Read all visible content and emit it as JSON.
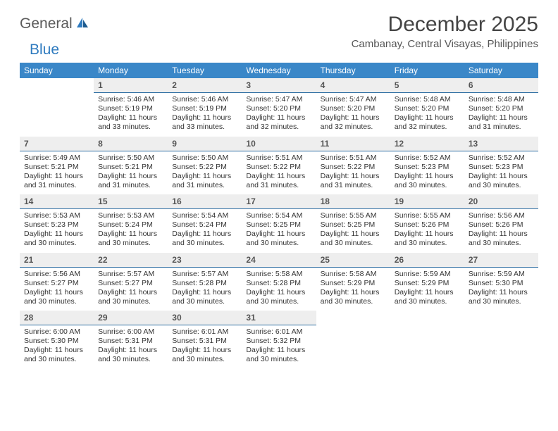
{
  "logo": {
    "brand_a": "General",
    "brand_b": "Blue"
  },
  "title": "December 2025",
  "location": "Cambanay, Central Visayas, Philippines",
  "colors": {
    "header_bg": "#3a87c8",
    "header_text": "#ffffff",
    "daynum_bg": "#eeeeee",
    "daynum_border": "#2f6fa3",
    "body_text": "#333333",
    "logo_gray": "#5c5c5c",
    "logo_blue": "#2f7bbf"
  },
  "fonts": {
    "title_size_pt": 22,
    "location_size_pt": 11,
    "th_size_pt": 9,
    "daynum_size_pt": 9,
    "body_size_pt": 8
  },
  "weekdays": [
    "Sunday",
    "Monday",
    "Tuesday",
    "Wednesday",
    "Thursday",
    "Friday",
    "Saturday"
  ],
  "weeks": [
    [
      null,
      {
        "n": "1",
        "sr": "Sunrise: 5:46 AM",
        "ss": "Sunset: 5:19 PM",
        "dl": "Daylight: 11 hours and 33 minutes."
      },
      {
        "n": "2",
        "sr": "Sunrise: 5:46 AM",
        "ss": "Sunset: 5:19 PM",
        "dl": "Daylight: 11 hours and 33 minutes."
      },
      {
        "n": "3",
        "sr": "Sunrise: 5:47 AM",
        "ss": "Sunset: 5:20 PM",
        "dl": "Daylight: 11 hours and 32 minutes."
      },
      {
        "n": "4",
        "sr": "Sunrise: 5:47 AM",
        "ss": "Sunset: 5:20 PM",
        "dl": "Daylight: 11 hours and 32 minutes."
      },
      {
        "n": "5",
        "sr": "Sunrise: 5:48 AM",
        "ss": "Sunset: 5:20 PM",
        "dl": "Daylight: 11 hours and 32 minutes."
      },
      {
        "n": "6",
        "sr": "Sunrise: 5:48 AM",
        "ss": "Sunset: 5:20 PM",
        "dl": "Daylight: 11 hours and 31 minutes."
      }
    ],
    [
      {
        "n": "7",
        "sr": "Sunrise: 5:49 AM",
        "ss": "Sunset: 5:21 PM",
        "dl": "Daylight: 11 hours and 31 minutes."
      },
      {
        "n": "8",
        "sr": "Sunrise: 5:50 AM",
        "ss": "Sunset: 5:21 PM",
        "dl": "Daylight: 11 hours and 31 minutes."
      },
      {
        "n": "9",
        "sr": "Sunrise: 5:50 AM",
        "ss": "Sunset: 5:22 PM",
        "dl": "Daylight: 11 hours and 31 minutes."
      },
      {
        "n": "10",
        "sr": "Sunrise: 5:51 AM",
        "ss": "Sunset: 5:22 PM",
        "dl": "Daylight: 11 hours and 31 minutes."
      },
      {
        "n": "11",
        "sr": "Sunrise: 5:51 AM",
        "ss": "Sunset: 5:22 PM",
        "dl": "Daylight: 11 hours and 31 minutes."
      },
      {
        "n": "12",
        "sr": "Sunrise: 5:52 AM",
        "ss": "Sunset: 5:23 PM",
        "dl": "Daylight: 11 hours and 30 minutes."
      },
      {
        "n": "13",
        "sr": "Sunrise: 5:52 AM",
        "ss": "Sunset: 5:23 PM",
        "dl": "Daylight: 11 hours and 30 minutes."
      }
    ],
    [
      {
        "n": "14",
        "sr": "Sunrise: 5:53 AM",
        "ss": "Sunset: 5:23 PM",
        "dl": "Daylight: 11 hours and 30 minutes."
      },
      {
        "n": "15",
        "sr": "Sunrise: 5:53 AM",
        "ss": "Sunset: 5:24 PM",
        "dl": "Daylight: 11 hours and 30 minutes."
      },
      {
        "n": "16",
        "sr": "Sunrise: 5:54 AM",
        "ss": "Sunset: 5:24 PM",
        "dl": "Daylight: 11 hours and 30 minutes."
      },
      {
        "n": "17",
        "sr": "Sunrise: 5:54 AM",
        "ss": "Sunset: 5:25 PM",
        "dl": "Daylight: 11 hours and 30 minutes."
      },
      {
        "n": "18",
        "sr": "Sunrise: 5:55 AM",
        "ss": "Sunset: 5:25 PM",
        "dl": "Daylight: 11 hours and 30 minutes."
      },
      {
        "n": "19",
        "sr": "Sunrise: 5:55 AM",
        "ss": "Sunset: 5:26 PM",
        "dl": "Daylight: 11 hours and 30 minutes."
      },
      {
        "n": "20",
        "sr": "Sunrise: 5:56 AM",
        "ss": "Sunset: 5:26 PM",
        "dl": "Daylight: 11 hours and 30 minutes."
      }
    ],
    [
      {
        "n": "21",
        "sr": "Sunrise: 5:56 AM",
        "ss": "Sunset: 5:27 PM",
        "dl": "Daylight: 11 hours and 30 minutes."
      },
      {
        "n": "22",
        "sr": "Sunrise: 5:57 AM",
        "ss": "Sunset: 5:27 PM",
        "dl": "Daylight: 11 hours and 30 minutes."
      },
      {
        "n": "23",
        "sr": "Sunrise: 5:57 AM",
        "ss": "Sunset: 5:28 PM",
        "dl": "Daylight: 11 hours and 30 minutes."
      },
      {
        "n": "24",
        "sr": "Sunrise: 5:58 AM",
        "ss": "Sunset: 5:28 PM",
        "dl": "Daylight: 11 hours and 30 minutes."
      },
      {
        "n": "25",
        "sr": "Sunrise: 5:58 AM",
        "ss": "Sunset: 5:29 PM",
        "dl": "Daylight: 11 hours and 30 minutes."
      },
      {
        "n": "26",
        "sr": "Sunrise: 5:59 AM",
        "ss": "Sunset: 5:29 PM",
        "dl": "Daylight: 11 hours and 30 minutes."
      },
      {
        "n": "27",
        "sr": "Sunrise: 5:59 AM",
        "ss": "Sunset: 5:30 PM",
        "dl": "Daylight: 11 hours and 30 minutes."
      }
    ],
    [
      {
        "n": "28",
        "sr": "Sunrise: 6:00 AM",
        "ss": "Sunset: 5:30 PM",
        "dl": "Daylight: 11 hours and 30 minutes."
      },
      {
        "n": "29",
        "sr": "Sunrise: 6:00 AM",
        "ss": "Sunset: 5:31 PM",
        "dl": "Daylight: 11 hours and 30 minutes."
      },
      {
        "n": "30",
        "sr": "Sunrise: 6:01 AM",
        "ss": "Sunset: 5:31 PM",
        "dl": "Daylight: 11 hours and 30 minutes."
      },
      {
        "n": "31",
        "sr": "Sunrise: 6:01 AM",
        "ss": "Sunset: 5:32 PM",
        "dl": "Daylight: 11 hours and 30 minutes."
      },
      null,
      null,
      null
    ]
  ]
}
